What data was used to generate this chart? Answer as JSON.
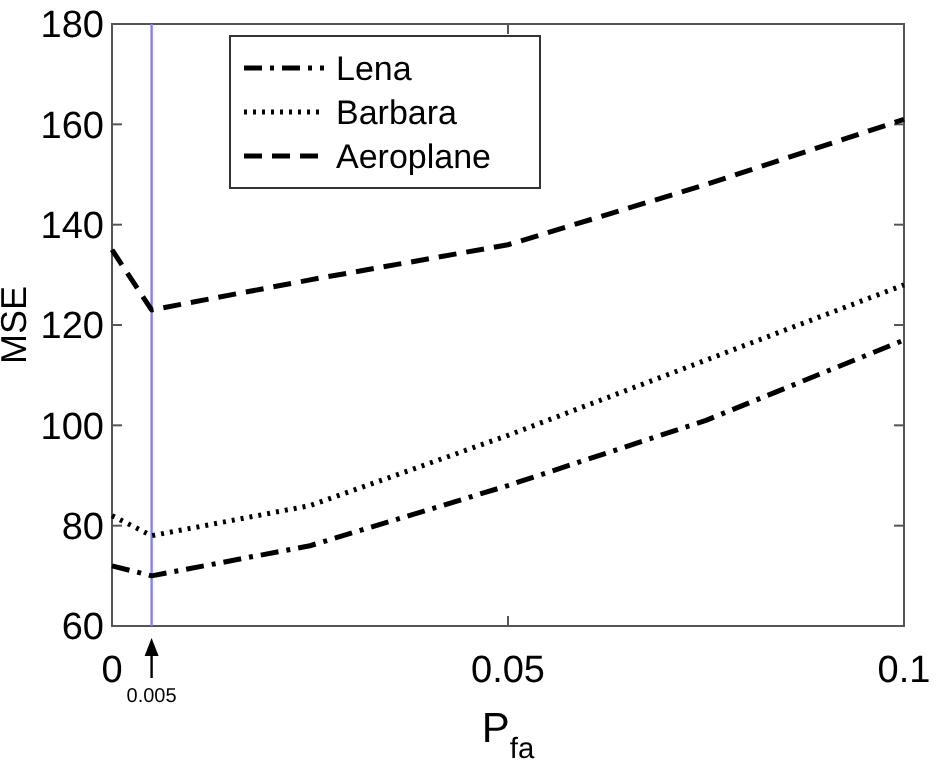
{
  "chart_data": {
    "type": "line",
    "xlabel": "P$_{fa}$",
    "ylabel": "MSE",
    "xlim": [
      0,
      0.1
    ],
    "xticks": [
      0,
      0.05,
      0.1
    ],
    "ylim": [
      60,
      180
    ],
    "yticks": [
      60,
      80,
      100,
      120,
      140,
      160,
      180
    ],
    "x": [
      0,
      0.005,
      0.025,
      0.05,
      0.075,
      0.1
    ],
    "series": [
      {
        "name": "Lena",
        "color": "#000000",
        "line_style": "dashdot",
        "values": [
          72,
          70,
          76,
          88,
          101,
          117
        ]
      },
      {
        "name": "Barbara",
        "color": "#000000",
        "line_style": "dotted",
        "values": [
          82,
          78,
          84,
          98,
          113,
          128
        ]
      },
      {
        "name": "Aeroplane",
        "color": "#000000",
        "line_style": "dashed",
        "values": [
          135,
          123,
          129,
          136,
          148,
          161
        ]
      }
    ],
    "ref_lines": [
      {
        "axis": "x",
        "value": 0.005,
        "color": "#8080ff"
      }
    ],
    "annotations": [
      {
        "text": "0.005",
        "x": 0.005,
        "y": 60
      }
    ],
    "legend": "top left",
    "grid": false,
    "marker": "none"
  }
}
